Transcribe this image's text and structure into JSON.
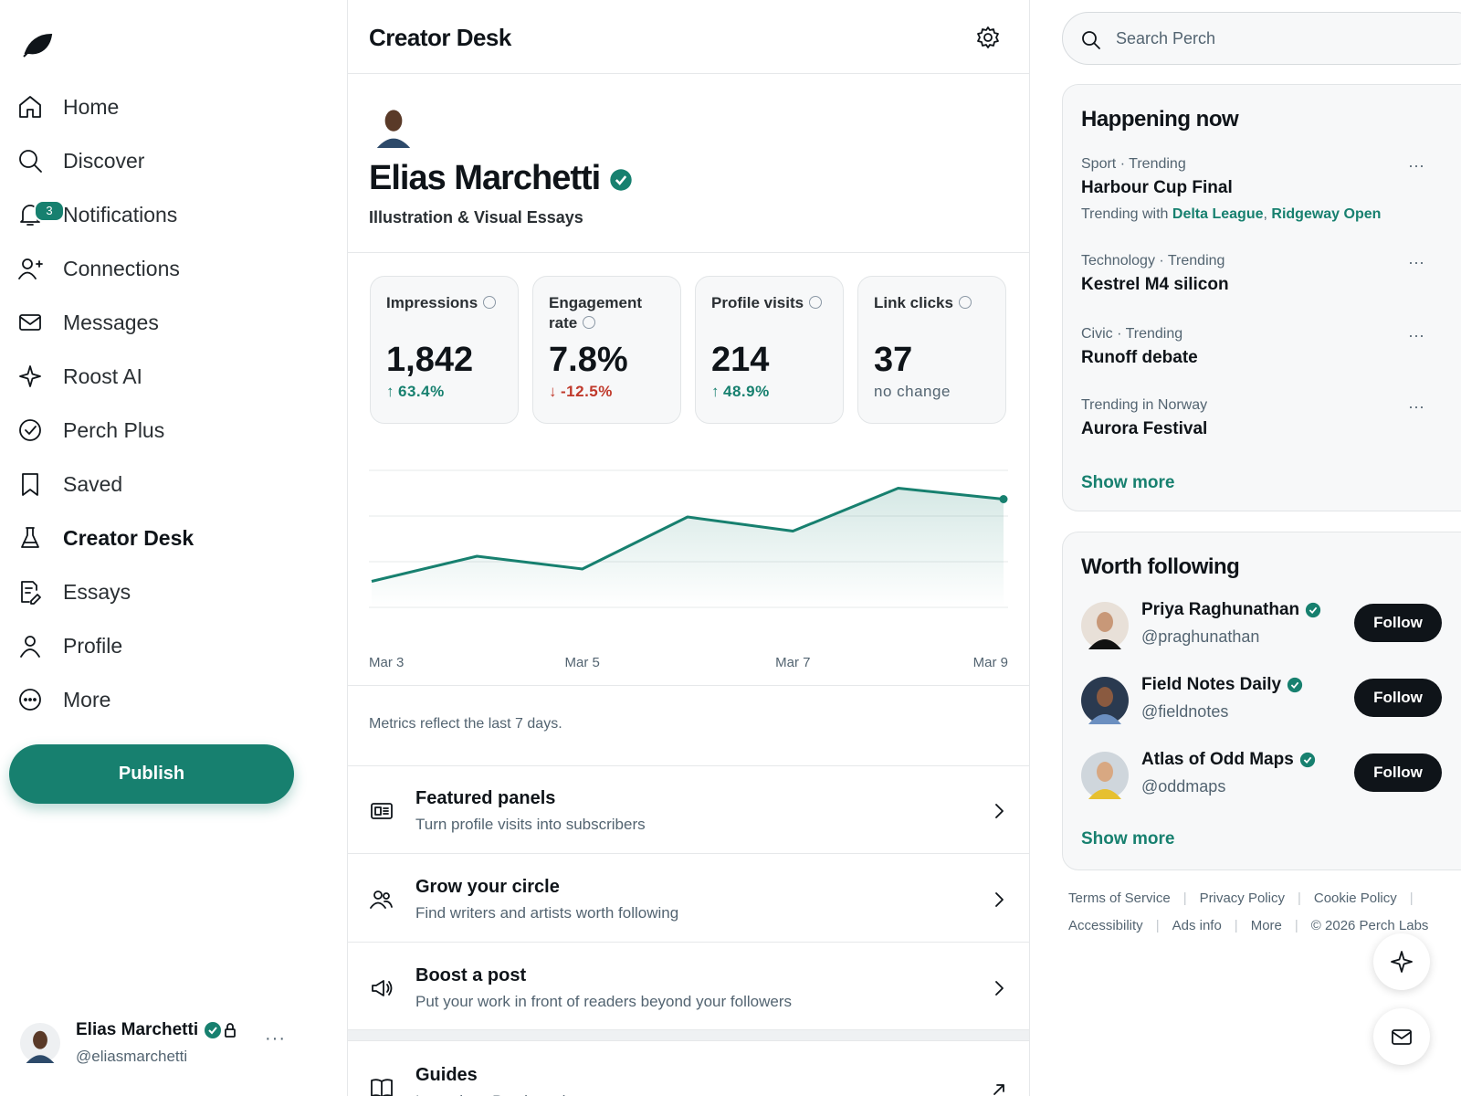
{
  "nav": {
    "items": [
      "Home",
      "Discover",
      "Notifications",
      "Connections",
      "Messages",
      "Roost AI",
      "Perch Plus",
      "Saved",
      "Creator Desk",
      "Essays",
      "Profile",
      "More"
    ],
    "active": 8,
    "notification_count": "3",
    "publish": "Publish"
  },
  "account": {
    "name": "Elias Marchetti",
    "handle": "@eliasmarchetti"
  },
  "header": {
    "title": "Creator Desk"
  },
  "profile": {
    "name": "Elias Marchetti",
    "subtitle": "Illustration & Visual Essays"
  },
  "metrics": [
    {
      "label": "Impressions",
      "value": "1,842",
      "change": "63.4%",
      "direction": "up"
    },
    {
      "label": "Engagement rate",
      "value": "7.8%",
      "change": "-12.5%",
      "direction": "down"
    },
    {
      "label": "Profile visits",
      "value": "214",
      "change": "48.9%",
      "direction": "up"
    },
    {
      "label": "Link clicks",
      "value": "37",
      "change": "no change",
      "direction": "none"
    }
  ],
  "chart_data": {
    "type": "line",
    "categories": [
      "Mar 3",
      null,
      "Mar 5",
      null,
      "Mar 7",
      null,
      "Mar 9"
    ],
    "values": [
      0.57,
      1.12,
      0.84,
      1.98,
      1.67,
      2.61,
      2.37
    ],
    "color": "#17806f",
    "ylim": [
      0,
      3
    ],
    "yticks": [
      0,
      1,
      2,
      3
    ],
    "grid": true
  },
  "note": "Metrics reflect the last 7 days.",
  "actions": [
    {
      "title": "Featured panels",
      "subtitle": "Turn profile visits into subscribers"
    },
    {
      "title": "Grow your circle",
      "subtitle": "Find writers and artists worth following"
    },
    {
      "title": "Boost a post",
      "subtitle": "Put your work in front of readers beyond your followers"
    },
    {
      "title": "Guides",
      "subtitle": "Learn how Perch works"
    }
  ],
  "search": {
    "placeholder": "Search Perch"
  },
  "trends": {
    "title": "Happening now",
    "items": [
      {
        "context": "Sport · Trending",
        "title": "Harbour Cup Final",
        "with_label": "Trending with",
        "with": [
          "Delta League",
          "Ridgeway Open"
        ]
      },
      {
        "context": "Technology · Trending",
        "title": "Kestrel M4 silicon"
      },
      {
        "context": "Civic · Trending",
        "title": "Runoff debate"
      },
      {
        "context": "Trending in Norway",
        "title": "Aurora Festival"
      }
    ],
    "show_more": "Show more"
  },
  "follow": {
    "title": "Worth following",
    "items": [
      {
        "name": "Priya Raghunathan",
        "handle": "@praghunathan",
        "button": "Follow"
      },
      {
        "name": "Field Notes Daily",
        "handle": "@fieldnotes",
        "button": "Follow"
      },
      {
        "name": "Atlas of Odd Maps",
        "handle": "@oddmaps",
        "button": "Follow"
      }
    ],
    "show_more": "Show more"
  },
  "footer": [
    "Terms of Service",
    "Privacy Policy",
    "Cookie Policy",
    "Accessibility",
    "Ads info",
    "More",
    "© 2026 Perch Labs"
  ]
}
